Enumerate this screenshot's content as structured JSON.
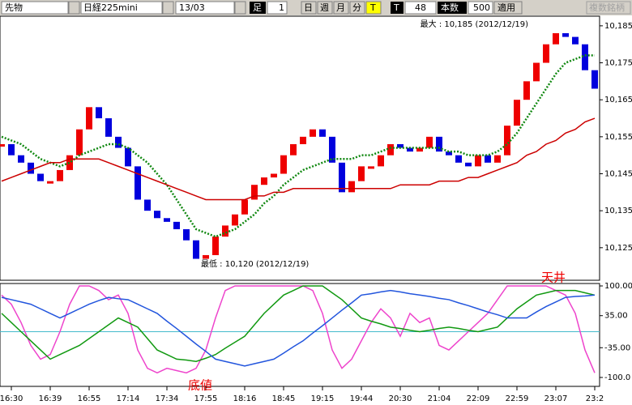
{
  "toolbar": {
    "market": "先物",
    "symbol": "日経225mini",
    "contract": "13/03",
    "bar_label": "足",
    "bar_unit": "1",
    "day": "日",
    "week": "週",
    "month": "月",
    "minute": "分",
    "tick": "T",
    "tick2": "T",
    "count": "48",
    "count_label": "本数",
    "bars": "500",
    "apply": "適用",
    "multi": "複数銘柄"
  },
  "chart_data": [
    {
      "type": "line",
      "annotations": [
        "最大 : 10,185 (2012/12/19)",
        "最低 : 10,120 (2012/12/19)"
      ],
      "categories": [
        null,
        "16:30",
        null,
        null,
        null,
        "16:39",
        null,
        null,
        null,
        "16:55",
        null,
        null,
        null,
        "17:14",
        null,
        null,
        null,
        "17:34",
        null,
        null,
        null,
        "17:55",
        null,
        null,
        null,
        "18:16",
        null,
        null,
        null,
        "18:45",
        null,
        null,
        null,
        "19:15",
        null,
        null,
        null,
        "19:44",
        null,
        null,
        null,
        "20:30",
        null,
        null,
        null,
        "21:04",
        null,
        null,
        null,
        "22:09",
        null,
        null,
        null,
        "22:59",
        null,
        null,
        null,
        "23:07",
        null,
        null,
        null,
        "23:2"
      ],
      "ylim": [
        10116.2,
        10187.6
      ],
      "yticks": [
        {
          "value": 10125,
          "label": "10,125"
        },
        {
          "value": 10135,
          "label": "10,135"
        },
        {
          "value": 10145,
          "label": "10,145"
        },
        {
          "value": 10155,
          "label": "10,155"
        },
        {
          "value": 10165,
          "label": "10,165"
        },
        {
          "value": 10175,
          "label": "10,175"
        },
        {
          "value": 10185,
          "label": "10,185"
        }
      ],
      "series": [
        {
          "style": "bars",
          "color": "#0000dd",
          "up_color": "#ee0000",
          "values": [
            10153,
            10150,
            10148,
            10145,
            10143,
            10143,
            10146,
            10150,
            10157,
            10163,
            10160,
            10155,
            10152,
            10147,
            10138,
            10135,
            10133,
            10132,
            10130,
            10127,
            10122,
            10123,
            10128,
            10131,
            10134,
            10138,
            10142,
            10144,
            10145,
            10150,
            10153,
            10155,
            10157,
            10155,
            10148,
            10140,
            10143,
            10147,
            10147,
            10150,
            10153,
            10152,
            10151,
            10152,
            10155,
            10151,
            10150,
            10148,
            10147,
            10150,
            10148,
            10150,
            10158,
            10165,
            10170,
            10175,
            10180,
            10183,
            10182,
            10180,
            10173,
            10168
          ]
        },
        {
          "style": "dotted",
          "color": "#118811",
          "values": [
            10155,
            10154,
            10153,
            10151,
            10149,
            10148,
            10147,
            10148,
            10150,
            10151,
            10152,
            10153,
            10153,
            10152,
            10150,
            10148,
            10145,
            10142,
            10138,
            10134,
            10130,
            10129,
            10128,
            10129,
            10130,
            10132,
            10134,
            10137,
            10139,
            10142,
            10144,
            10146,
            10147,
            10148,
            10149,
            10149,
            10149,
            10150,
            10150,
            10151,
            10152,
            10152,
            10152,
            10152,
            10152,
            10152,
            10151,
            10151,
            10150,
            10150,
            10150,
            10151,
            10153,
            10156,
            10160,
            10164,
            10168,
            10172,
            10175,
            10176,
            10177,
            10177
          ]
        },
        {
          "style": "solid",
          "color": "#cc0000",
          "values": [
            10143,
            10144,
            10145,
            10146,
            10147,
            10148,
            10148,
            10149,
            10149,
            10149,
            10149,
            10148,
            10147,
            10146,
            10145,
            10144,
            10143,
            10142,
            10141,
            10140,
            10139,
            10138,
            10138,
            10138,
            10138,
            10138,
            10139,
            10139,
            10140,
            10140,
            10141,
            10141,
            10141,
            10141,
            10141,
            10141,
            10141,
            10141,
            10141,
            10141,
            10141,
            10142,
            10142,
            10142,
            10142,
            10143,
            10143,
            10143,
            10144,
            10144,
            10145,
            10146,
            10147,
            10148,
            10150,
            10151,
            10153,
            10154,
            10156,
            10157,
            10159,
            10160
          ]
        }
      ]
    },
    {
      "type": "line",
      "annotations": [
        "天井",
        "底値"
      ],
      "ylim": [
        -119.5,
        105.3
      ],
      "yticks": [
        {
          "value": 100,
          "label": "100.00"
        },
        {
          "value": 35,
          "label": "35.00"
        },
        {
          "value": -35,
          "label": "-35.00"
        },
        {
          "value": -100,
          "label": "-100.0"
        }
      ],
      "zero_line": 0,
      "series": [
        {
          "style": "solid",
          "color": "#ee44cc",
          "values": [
            80,
            60,
            20,
            -30,
            -60,
            -50,
            0,
            60,
            100,
            100,
            90,
            70,
            80,
            40,
            -40,
            -80,
            -90,
            -80,
            -85,
            -90,
            -80,
            -40,
            30,
            90,
            100,
            100,
            100,
            100,
            100,
            100,
            100,
            100,
            90,
            40,
            -40,
            -80,
            -60,
            -20,
            20,
            50,
            30,
            -10,
            40,
            20,
            30,
            -30,
            -40,
            -20,
            0,
            20,
            40,
            70,
            100,
            100,
            100,
            100,
            100,
            90,
            80,
            40,
            -40,
            -90
          ]
        },
        {
          "style": "solid",
          "color": "#119911",
          "values": [
            40,
            20,
            0,
            -20,
            -40,
            -60,
            -50,
            -40,
            -30,
            -15,
            0,
            15,
            30,
            20,
            10,
            -15,
            -40,
            -50,
            -60,
            -62,
            -65,
            -58,
            -50,
            -36,
            -23,
            -10,
            15,
            40,
            60,
            80,
            90,
            100,
            100,
            100,
            85,
            70,
            50,
            30,
            23,
            17,
            10,
            7,
            3,
            0,
            3,
            7,
            10,
            7,
            3,
            0,
            5,
            10,
            30,
            50,
            65,
            80,
            85,
            90,
            90,
            90,
            85,
            80
          ]
        },
        {
          "style": "solid",
          "color": "#2255dd",
          "values": [
            75,
            70,
            65,
            60,
            50,
            40,
            30,
            40,
            50,
            60,
            68,
            75,
            72,
            70,
            60,
            50,
            40,
            23,
            7,
            -10,
            -27,
            -43,
            -60,
            -65,
            -70,
            -75,
            -70,
            -65,
            -60,
            -47,
            -33,
            -20,
            -3,
            13,
            30,
            47,
            63,
            80,
            83,
            87,
            90,
            87,
            83,
            80,
            77,
            73,
            70,
            63,
            57,
            50,
            43,
            37,
            30,
            30,
            30,
            43,
            55,
            65,
            75,
            77,
            78,
            80
          ]
        }
      ]
    }
  ]
}
